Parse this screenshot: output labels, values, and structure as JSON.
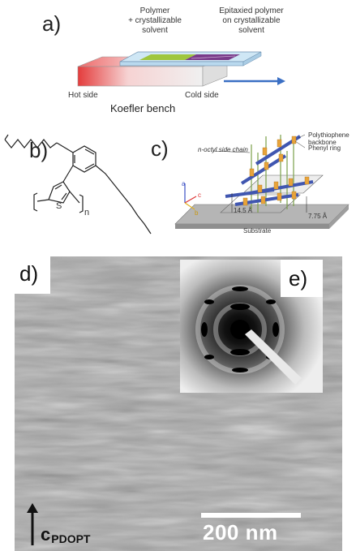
{
  "panel_a": {
    "label": "a)",
    "polymer_solvent": [
      "Polymer",
      "+ crystallizable",
      "solvent"
    ],
    "epitaxied": [
      "Epitaxied polymer",
      "on crystallizable",
      "solvent"
    ],
    "hot_side": "Hot side",
    "cold_side": "Cold side",
    "bench": "Koefler bench"
  },
  "panel_b": {
    "label": "b)",
    "s_atom": "S",
    "subscript_n": "n"
  },
  "panel_c": {
    "label": "c)",
    "backbone": "Polythiophene backbone",
    "side_chain": "n-octyl side chain",
    "phenyl": "Phenyl ring",
    "spacing_1": "14.5 Å",
    "spacing_2": "7.75 Å",
    "substrate": "Substrate",
    "axis_a": "a",
    "axis_b": "b",
    "axis_c": "c"
  },
  "panel_d": {
    "label": "d)",
    "scale_bar": "200 nm",
    "c_vector": "c",
    "c_subscript": "PDOPT"
  },
  "panel_e": {
    "label": "e)"
  },
  "colors": {
    "hot": "#e63a3a",
    "cold_arrow": "#3a6fc4",
    "backbone": "#4056b0",
    "phenyl": "#e8a33a",
    "chain": "#7aa04a"
  }
}
